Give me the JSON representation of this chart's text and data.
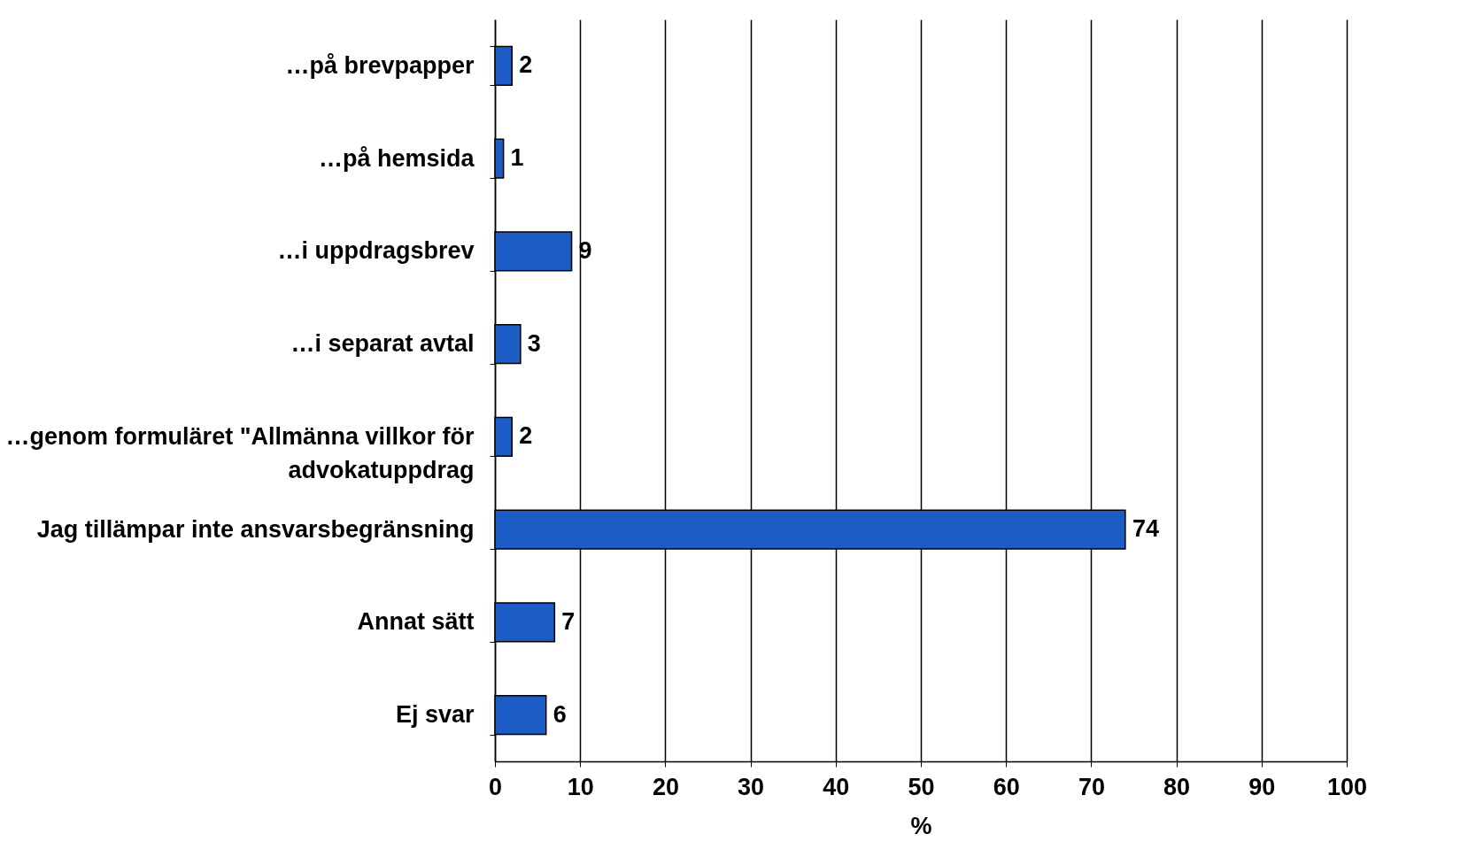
{
  "chart_data": {
    "type": "bar",
    "orientation": "horizontal",
    "xlabel": "%",
    "categories": [
      "…på brevpapper",
      "…på hemsida",
      "…i uppdragsbrev",
      "…i separat avtal",
      "…genom formuläret \"Allmänna villkor för advokatuppdrag",
      "Jag tillämpar inte ansvarsbegränsning",
      "Annat sätt",
      "Ej svar"
    ],
    "values": [
      2,
      1,
      9,
      3,
      2,
      74,
      7,
      6
    ],
    "color": "#1d5cc4",
    "xlim": [
      0,
      100
    ],
    "xticks": [
      0,
      10,
      20,
      30,
      40,
      50,
      60,
      70,
      80,
      90,
      100
    ],
    "grid": "x",
    "data_labels": true
  }
}
